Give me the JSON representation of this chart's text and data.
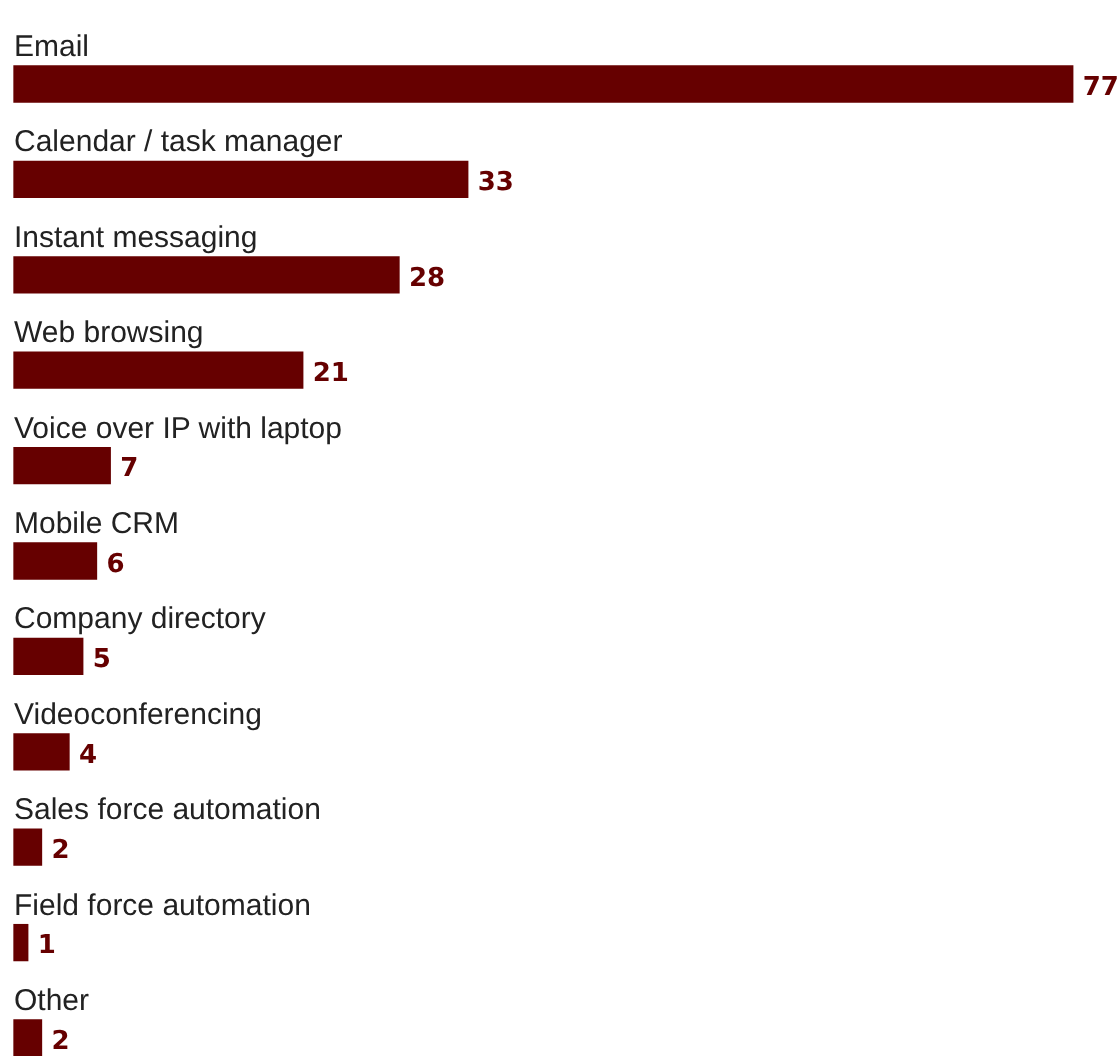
{
  "chart_data": {
    "type": "bar",
    "orientation": "horizontal",
    "categories": [
      "Email",
      "Calendar / task manager",
      "Instant messaging",
      "Web browsing",
      "Voice over IP with laptop",
      "Mobile CRM",
      "Company directory",
      "Videoconferencing",
      "Sales force automation",
      "Field force automation",
      "Other"
    ],
    "values": [
      77,
      33,
      28,
      21,
      7,
      6,
      5,
      4,
      2,
      1,
      2
    ],
    "color": "#660000",
    "data_labels": true,
    "legend": false
  }
}
